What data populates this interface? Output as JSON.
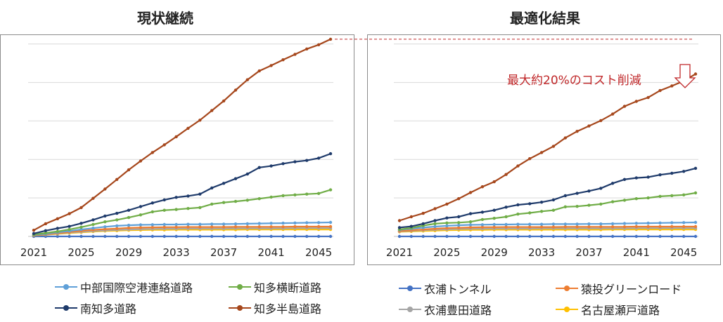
{
  "titles": {
    "left": "現状継続",
    "right": "最適化結果"
  },
  "annotation": {
    "text": "最大約20%のコスト削減",
    "arrow_icon": "down-arrow-outline-icon"
  },
  "colors": {
    "annotation": "#c0282a",
    "gridline": "#d9d9d9",
    "frame": "#8c8c8c"
  },
  "legend": [
    {
      "name": "中部国際空港連絡道路",
      "color": "#5fa0d8"
    },
    {
      "name": "知多横断道路",
      "color": "#70ad47"
    },
    {
      "name": "南知多道路",
      "color": "#1f3b6b"
    },
    {
      "name": "知多半島道路",
      "color": "#a6471c"
    },
    {
      "name": "衣浦トンネル",
      "color": "#4472c4"
    },
    {
      "name": "猿投グリーンロード",
      "color": "#ed7d31"
    },
    {
      "name": "衣浦豊田道路",
      "color": "#a5a5a5"
    },
    {
      "name": "名古屋瀬戸道路",
      "color": "#ffc000"
    }
  ],
  "chart_data": [
    {
      "type": "line",
      "title": "現状継続",
      "x": [
        2021,
        2022,
        2023,
        2024,
        2025,
        2026,
        2027,
        2028,
        2029,
        2030,
        2031,
        2032,
        2033,
        2034,
        2035,
        2036,
        2037,
        2038,
        2039,
        2040,
        2041,
        2042,
        2043,
        2044,
        2045,
        2046
      ],
      "x_tick_labels": [
        "2021",
        "2025",
        "2029",
        "2033",
        "2037",
        "2041",
        "2045"
      ],
      "ylim": [
        0,
        105
      ],
      "y_gridlines": [
        0,
        20,
        40,
        60,
        80,
        100
      ],
      "y_tick_labels": "none",
      "series": [
        {
          "name": "衣浦トンネル",
          "values": [
            0,
            0,
            0,
            0,
            0,
            0,
            0,
            0,
            0,
            0,
            0,
            0,
            0,
            0,
            0,
            0,
            0,
            0,
            0,
            0,
            0,
            0,
            0,
            0,
            0,
            0
          ]
        },
        {
          "name": "名古屋瀬戸道路",
          "values": [
            0.5,
            0.9,
            1.3,
            1.7,
            2.1,
            2.5,
            2.8,
            3.0,
            3.2,
            3.3,
            3.4,
            3.4,
            3.5,
            3.5,
            3.5,
            3.5,
            3.5,
            3.5,
            3.6,
            3.6,
            3.6,
            3.6,
            3.6,
            3.6,
            3.6,
            3.6
          ]
        },
        {
          "name": "衣浦豊田道路",
          "values": [
            0.6,
            1.0,
            1.5,
            2.0,
            2.4,
            2.8,
            3.1,
            3.4,
            3.6,
            3.8,
            3.9,
            4.0,
            4.0,
            4.1,
            4.1,
            4.1,
            4.1,
            4.2,
            4.2,
            4.2,
            4.2,
            4.2,
            4.3,
            4.3,
            4.3,
            4.3
          ]
        },
        {
          "name": "猿投グリーンロード",
          "values": [
            0.6,
            1.1,
            1.7,
            2.3,
            2.9,
            3.4,
            3.8,
            4.1,
            4.4,
            4.6,
            4.7,
            4.8,
            4.8,
            4.9,
            4.9,
            4.9,
            4.9,
            5.0,
            5.0,
            5.0,
            5.0,
            5.0,
            5.1,
            5.1,
            5.1,
            5.1
          ]
        },
        {
          "name": "中部国際空港連絡道路",
          "values": [
            0.8,
            1.4,
            2.1,
            2.8,
            3.6,
            4.3,
            5.0,
            5.5,
            5.8,
            6.0,
            6.1,
            6.2,
            6.2,
            6.3,
            6.3,
            6.4,
            6.4,
            6.5,
            6.6,
            6.7,
            6.8,
            6.9,
            7.0,
            7.1,
            7.2,
            7.3
          ]
        },
        {
          "name": "知多横断道路",
          "values": [
            1.0,
            1.8,
            2.6,
            3.6,
            4.8,
            6.2,
            7.6,
            8.6,
            9.8,
            11.2,
            12.8,
            13.6,
            14.0,
            14.5,
            15.0,
            16.8,
            17.6,
            18.2,
            18.8,
            19.6,
            20.4,
            21.2,
            21.6,
            22.0,
            22.3,
            24.2
          ]
        },
        {
          "name": "南知多道路",
          "values": [
            1.5,
            3.0,
            4.2,
            5.2,
            6.8,
            8.6,
            10.6,
            12.0,
            13.6,
            15.5,
            17.4,
            19.0,
            20.3,
            21.0,
            22.0,
            25.2,
            27.6,
            30.0,
            32.4,
            35.8,
            36.6,
            37.8,
            38.8,
            39.5,
            40.7,
            43.0
          ]
        },
        {
          "name": "知多半島道路",
          "values": [
            3.2,
            6.6,
            9.2,
            11.8,
            15.0,
            19.8,
            24.6,
            29.6,
            34.6,
            39.2,
            43.6,
            47.6,
            51.8,
            56.2,
            60.4,
            65.4,
            70.4,
            76.0,
            81.4,
            86.0,
            88.8,
            91.8,
            94.6,
            97.4,
            99.6,
            102.5
          ]
        }
      ]
    },
    {
      "type": "line",
      "title": "最適化結果",
      "x": [
        2021,
        2022,
        2023,
        2024,
        2025,
        2026,
        2027,
        2028,
        2029,
        2030,
        2031,
        2032,
        2033,
        2034,
        2035,
        2036,
        2037,
        2038,
        2039,
        2040,
        2041,
        2042,
        2043,
        2044,
        2045,
        2046
      ],
      "x_tick_labels": [
        "2021",
        "2025",
        "2029",
        "2033",
        "2037",
        "2041",
        "2045"
      ],
      "ylim": [
        0,
        105
      ],
      "y_gridlines": [
        0,
        20,
        40,
        60,
        80,
        100
      ],
      "y_tick_labels": "none",
      "series": [
        {
          "name": "衣浦トンネル",
          "values": [
            0,
            0,
            0,
            0,
            0,
            0,
            0,
            0,
            0,
            0,
            0,
            0,
            0,
            0,
            0,
            0,
            0,
            0,
            0,
            0,
            0,
            0,
            0,
            0,
            0,
            0
          ]
        },
        {
          "name": "名古屋瀬戸道路",
          "values": [
            2.4,
            2.6,
            2.8,
            3.0,
            3.2,
            3.3,
            3.4,
            3.4,
            3.5,
            3.5,
            3.5,
            3.5,
            3.5,
            3.5,
            3.5,
            3.5,
            3.5,
            3.5,
            3.6,
            3.6,
            3.6,
            3.6,
            3.6,
            3.6,
            3.6,
            3.6
          ]
        },
        {
          "name": "衣浦豊田道路",
          "values": [
            2.6,
            2.9,
            3.2,
            3.5,
            3.7,
            3.9,
            4.0,
            4.0,
            4.1,
            4.1,
            4.1,
            4.1,
            4.2,
            4.2,
            4.2,
            4.2,
            4.2,
            4.2,
            4.2,
            4.2,
            4.3,
            4.3,
            4.3,
            4.3,
            4.3,
            4.3
          ]
        },
        {
          "name": "猿投グリーンロード",
          "values": [
            2.8,
            3.2,
            3.6,
            4.0,
            4.3,
            4.5,
            4.7,
            4.8,
            4.8,
            4.9,
            4.9,
            4.9,
            4.9,
            4.9,
            5.0,
            5.0,
            5.0,
            5.0,
            5.0,
            5.0,
            5.1,
            5.1,
            5.1,
            5.1,
            5.1,
            5.1
          ]
        },
        {
          "name": "中部国際空港連絡道路",
          "values": [
            3.4,
            4.0,
            4.6,
            5.1,
            5.5,
            5.8,
            6.0,
            6.1,
            6.2,
            6.2,
            6.3,
            6.3,
            6.3,
            6.4,
            6.4,
            6.4,
            6.5,
            6.5,
            6.6,
            6.7,
            6.8,
            6.9,
            7.0,
            7.1,
            7.2,
            7.3
          ]
        },
        {
          "name": "知多横断道路",
          "values": [
            3.6,
            4.4,
            5.6,
            6.6,
            7.0,
            7.2,
            7.6,
            8.8,
            9.4,
            10.2,
            11.6,
            12.2,
            13.0,
            13.6,
            15.4,
            15.6,
            16.2,
            16.8,
            18.0,
            18.8,
            19.6,
            20.0,
            20.8,
            21.2,
            21.6,
            22.6
          ]
        },
        {
          "name": "南知多道路",
          "values": [
            4.6,
            5.2,
            6.6,
            8.2,
            9.6,
            10.2,
            11.8,
            12.6,
            13.6,
            15.2,
            16.4,
            17.0,
            17.8,
            19.0,
            21.2,
            22.4,
            23.6,
            25.0,
            27.6,
            29.6,
            30.4,
            30.8,
            32.0,
            32.8,
            33.8,
            35.4
          ]
        },
        {
          "name": "知多半島道路",
          "values": [
            8.2,
            10.2,
            12.0,
            14.4,
            16.8,
            19.6,
            22.8,
            25.8,
            28.4,
            32.2,
            36.6,
            40.4,
            43.6,
            46.8,
            51.2,
            54.6,
            57.4,
            60.2,
            63.6,
            67.6,
            70.2,
            72.2,
            75.8,
            78.2,
            80.8,
            84.4
          ]
        }
      ]
    }
  ]
}
